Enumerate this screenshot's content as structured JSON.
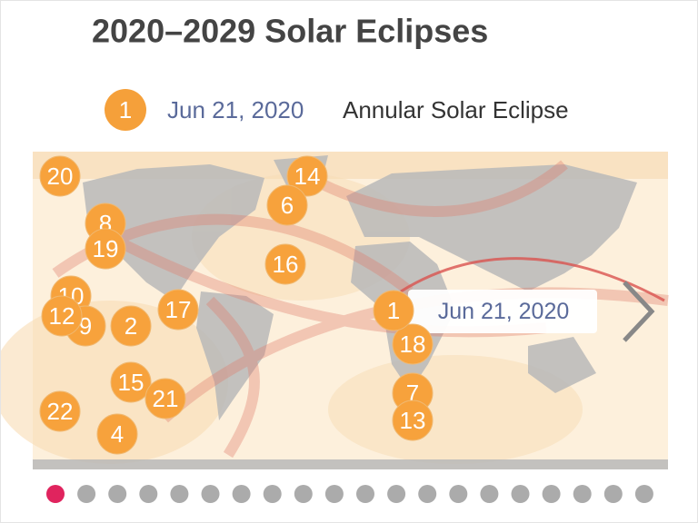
{
  "header": {
    "title": "2020–2029 Solar Eclipses"
  },
  "selected": {
    "number": "1",
    "date": "Jun 21, 2020",
    "type": "Annular Solar Eclipse"
  },
  "markers": [
    {
      "label": "20"
    },
    {
      "label": "14"
    },
    {
      "label": "6"
    },
    {
      "label": "8"
    },
    {
      "label": "19"
    },
    {
      "label": "16"
    },
    {
      "label": "10"
    },
    {
      "label": "9"
    },
    {
      "label": "12"
    },
    {
      "label": "2"
    },
    {
      "label": "17"
    },
    {
      "label": "18"
    },
    {
      "label": "15"
    },
    {
      "label": "21"
    },
    {
      "label": "7"
    },
    {
      "label": "13"
    },
    {
      "label": "22"
    },
    {
      "label": "4"
    },
    {
      "label": "1"
    }
  ],
  "tooltip": {
    "date": "Jun 21, 2020"
  }
}
